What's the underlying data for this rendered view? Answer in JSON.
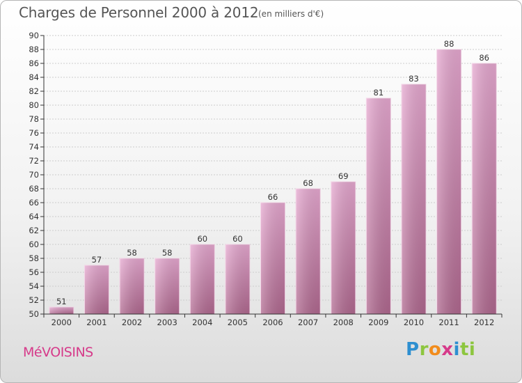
{
  "title": "Charges de Personnel 2000 à 2012",
  "subtitle": "(en milliers d'€)",
  "place_name": "MéVOISINS",
  "logo": {
    "p": "P",
    "r": "r",
    "o": "o",
    "x": "x",
    "i": "i",
    "ti": "ti"
  },
  "colors": {
    "bar_top": "#e6a8d0",
    "bar_bottom": "#b0688f",
    "axis": "#333333",
    "grid": "#cccccc",
    "text": "#333333",
    "place": "#d63a8a"
  },
  "chart_data": {
    "type": "bar",
    "title": "Charges de Personnel 2000 à 2012",
    "subtitle": "(en milliers d'€)",
    "categories": [
      "2000",
      "2001",
      "2002",
      "2003",
      "2004",
      "2005",
      "2006",
      "2007",
      "2008",
      "2009",
      "2010",
      "2011",
      "2012"
    ],
    "values": [
      51,
      57,
      58,
      58,
      60,
      60,
      66,
      68,
      69,
      81,
      83,
      88,
      86
    ],
    "ylim": [
      50,
      90
    ],
    "ytick_step": 2,
    "grid": "horizontal",
    "data_labels": true
  }
}
